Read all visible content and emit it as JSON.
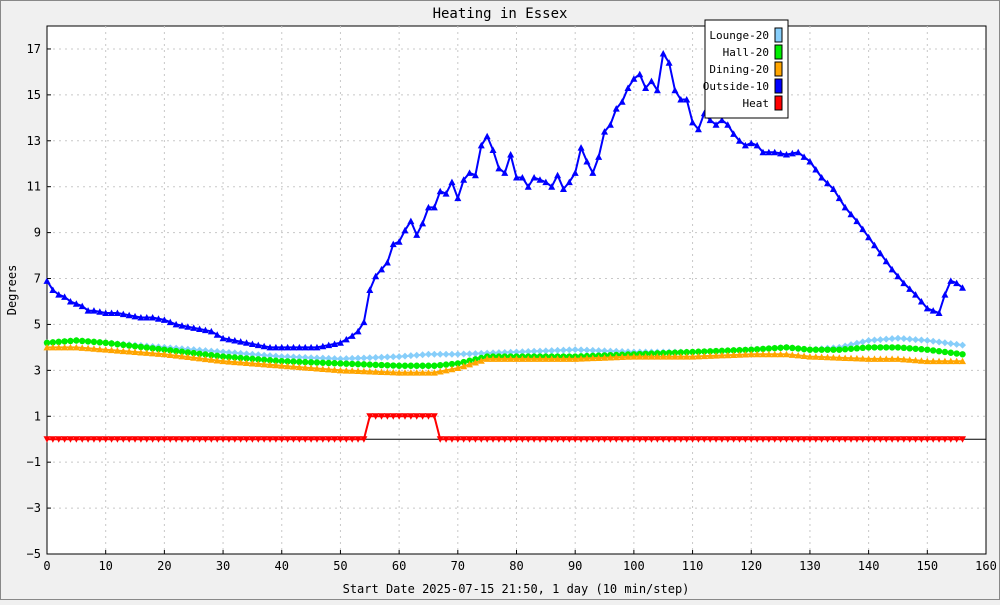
{
  "chart_data": {
    "type": "line",
    "title": "Heating in Essex",
    "xlabel": "Start Date 2025-07-15 21:50, 1 day (10 min/step)",
    "ylabel": "Degrees",
    "xlim": [
      0,
      160
    ],
    "ylim": [
      -5,
      18
    ],
    "x_ticks": [
      0,
      10,
      20,
      30,
      40,
      50,
      60,
      70,
      80,
      90,
      100,
      110,
      120,
      130,
      140,
      150,
      160
    ],
    "y_ticks": [
      -5,
      -3,
      -1,
      1,
      3,
      5,
      7,
      9,
      11,
      13,
      15,
      17
    ],
    "grid": true,
    "legend_position": "top-right",
    "series": [
      {
        "name": "Lounge-20",
        "color": "#87cefa",
        "marker": "diamond",
        "points": [
          [
            0,
            4.2
          ],
          [
            5,
            4.3
          ],
          [
            10,
            4.2
          ],
          [
            20,
            4.0
          ],
          [
            30,
            3.8
          ],
          [
            40,
            3.6
          ],
          [
            50,
            3.5
          ],
          [
            60,
            3.6
          ],
          [
            65,
            3.7
          ],
          [
            70,
            3.7
          ],
          [
            80,
            3.8
          ],
          [
            90,
            3.9
          ],
          [
            100,
            3.8
          ],
          [
            110,
            3.8
          ],
          [
            120,
            3.9
          ],
          [
            126,
            4.0
          ],
          [
            130,
            3.9
          ],
          [
            135,
            4.0
          ],
          [
            140,
            4.3
          ],
          [
            145,
            4.4
          ],
          [
            150,
            4.3
          ],
          [
            156,
            4.1
          ]
        ]
      },
      {
        "name": "Hall-20",
        "color": "#00ee00",
        "marker": "circle",
        "points": [
          [
            0,
            4.2
          ],
          [
            5,
            4.3
          ],
          [
            10,
            4.2
          ],
          [
            20,
            3.9
          ],
          [
            30,
            3.6
          ],
          [
            40,
            3.4
          ],
          [
            50,
            3.3
          ],
          [
            60,
            3.2
          ],
          [
            66,
            3.2
          ],
          [
            70,
            3.3
          ],
          [
            75,
            3.6
          ],
          [
            80,
            3.6
          ],
          [
            90,
            3.6
          ],
          [
            100,
            3.7
          ],
          [
            110,
            3.8
          ],
          [
            120,
            3.9
          ],
          [
            126,
            4.0
          ],
          [
            130,
            3.9
          ],
          [
            135,
            3.9
          ],
          [
            140,
            4.0
          ],
          [
            145,
            4.0
          ],
          [
            150,
            3.9
          ],
          [
            156,
            3.7
          ]
        ]
      },
      {
        "name": "Dining-20",
        "color": "#ffa500",
        "marker": "triangle-up",
        "points": [
          [
            0,
            4.0
          ],
          [
            5,
            4.0
          ],
          [
            10,
            3.9
          ],
          [
            20,
            3.7
          ],
          [
            30,
            3.4
          ],
          [
            40,
            3.2
          ],
          [
            50,
            3.0
          ],
          [
            60,
            2.9
          ],
          [
            66,
            2.9
          ],
          [
            70,
            3.1
          ],
          [
            75,
            3.5
          ],
          [
            80,
            3.5
          ],
          [
            90,
            3.5
          ],
          [
            100,
            3.6
          ],
          [
            110,
            3.6
          ],
          [
            120,
            3.7
          ],
          [
            126,
            3.7
          ],
          [
            130,
            3.6
          ],
          [
            140,
            3.5
          ],
          [
            145,
            3.5
          ],
          [
            150,
            3.4
          ],
          [
            156,
            3.4
          ]
        ]
      },
      {
        "name": "Outside-10",
        "color": "#0000ff",
        "marker": "triangle-up",
        "points": [
          [
            0,
            6.9
          ],
          [
            1,
            6.5
          ],
          [
            2,
            6.3
          ],
          [
            3,
            6.2
          ],
          [
            4,
            6.0
          ],
          [
            5,
            5.9
          ],
          [
            6,
            5.8
          ],
          [
            7,
            5.6
          ],
          [
            8,
            5.6
          ],
          [
            10,
            5.5
          ],
          [
            12,
            5.5
          ],
          [
            14,
            5.4
          ],
          [
            16,
            5.3
          ],
          [
            18,
            5.3
          ],
          [
            20,
            5.2
          ],
          [
            22,
            5.0
          ],
          [
            24,
            4.9
          ],
          [
            26,
            4.8
          ],
          [
            28,
            4.7
          ],
          [
            30,
            4.4
          ],
          [
            32,
            4.3
          ],
          [
            34,
            4.2
          ],
          [
            36,
            4.1
          ],
          [
            38,
            4.0
          ],
          [
            40,
            4.0
          ],
          [
            42,
            4.0
          ],
          [
            44,
            4.0
          ],
          [
            46,
            4.0
          ],
          [
            48,
            4.1
          ],
          [
            50,
            4.2
          ],
          [
            52,
            4.5
          ],
          [
            53,
            4.7
          ],
          [
            54,
            5.1
          ],
          [
            55,
            6.5
          ],
          [
            56,
            7.1
          ],
          [
            57,
            7.4
          ],
          [
            58,
            7.7
          ],
          [
            59,
            8.5
          ],
          [
            60,
            8.6
          ],
          [
            61,
            9.1
          ],
          [
            62,
            9.5
          ],
          [
            63,
            8.9
          ],
          [
            64,
            9.4
          ],
          [
            65,
            10.1
          ],
          [
            66,
            10.1
          ],
          [
            67,
            10.8
          ],
          [
            68,
            10.7
          ],
          [
            69,
            11.2
          ],
          [
            70,
            10.5
          ],
          [
            71,
            11.3
          ],
          [
            72,
            11.6
          ],
          [
            73,
            11.5
          ],
          [
            74,
            12.8
          ],
          [
            75,
            13.2
          ],
          [
            76,
            12.6
          ],
          [
            77,
            11.8
          ],
          [
            78,
            11.6
          ],
          [
            79,
            12.4
          ],
          [
            80,
            11.4
          ],
          [
            81,
            11.4
          ],
          [
            82,
            11.0
          ],
          [
            83,
            11.4
          ],
          [
            84,
            11.3
          ],
          [
            85,
            11.2
          ],
          [
            86,
            11.0
          ],
          [
            87,
            11.5
          ],
          [
            88,
            10.9
          ],
          [
            89,
            11.2
          ],
          [
            90,
            11.6
          ],
          [
            91,
            12.7
          ],
          [
            92,
            12.1
          ],
          [
            93,
            11.6
          ],
          [
            94,
            12.3
          ],
          [
            95,
            13.4
          ],
          [
            96,
            13.7
          ],
          [
            97,
            14.4
          ],
          [
            98,
            14.7
          ],
          [
            99,
            15.3
          ],
          [
            100,
            15.7
          ],
          [
            101,
            15.9
          ],
          [
            102,
            15.3
          ],
          [
            103,
            15.6
          ],
          [
            104,
            15.2
          ],
          [
            105,
            16.8
          ],
          [
            106,
            16.4
          ],
          [
            107,
            15.2
          ],
          [
            108,
            14.8
          ],
          [
            109,
            14.8
          ],
          [
            110,
            13.8
          ],
          [
            111,
            13.5
          ],
          [
            112,
            14.2
          ],
          [
            113,
            13.9
          ],
          [
            114,
            13.7
          ],
          [
            115,
            13.9
          ],
          [
            116,
            13.7
          ],
          [
            117,
            13.3
          ],
          [
            118,
            13.0
          ],
          [
            119,
            12.8
          ],
          [
            120,
            12.9
          ],
          [
            121,
            12.8
          ],
          [
            122,
            12.5
          ],
          [
            124,
            12.5
          ],
          [
            126,
            12.4
          ],
          [
            128,
            12.5
          ],
          [
            130,
            12.1
          ],
          [
            132,
            11.4
          ],
          [
            134,
            10.9
          ],
          [
            136,
            10.1
          ],
          [
            138,
            9.5
          ],
          [
            140,
            8.8
          ],
          [
            142,
            8.1
          ],
          [
            144,
            7.4
          ],
          [
            146,
            6.8
          ],
          [
            148,
            6.3
          ],
          [
            150,
            5.7
          ],
          [
            152,
            5.5
          ],
          [
            153,
            6.3
          ],
          [
            154,
            6.9
          ],
          [
            155,
            6.8
          ],
          [
            156,
            6.6
          ]
        ]
      },
      {
        "name": "Heat",
        "color": "#ff0000",
        "marker": "triangle-down",
        "points": [
          [
            0,
            0
          ],
          [
            54,
            0
          ],
          [
            55,
            1
          ],
          [
            66,
            1
          ],
          [
            67,
            0
          ],
          [
            156,
            0
          ]
        ]
      }
    ]
  }
}
